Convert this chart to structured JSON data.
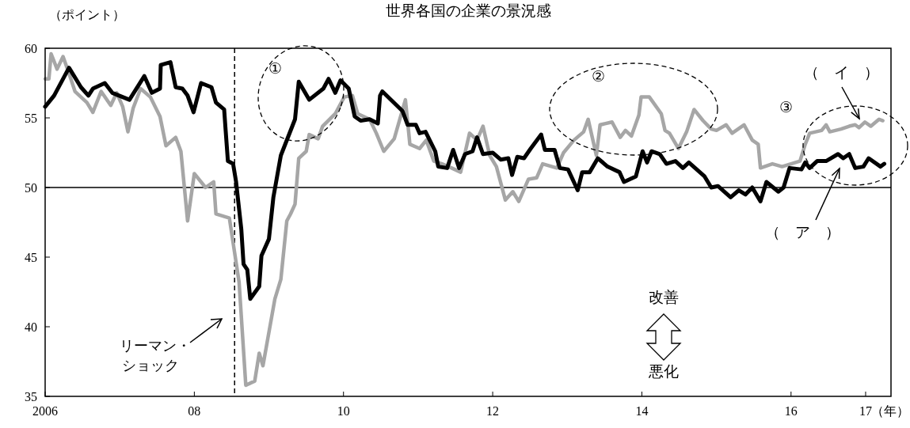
{
  "chart_data": {
    "type": "line",
    "title": "世界各国の企業の景況感",
    "ylabel": "（ポイント）",
    "xlabel": "（年）",
    "xlim": [
      2006,
      2017.34
    ],
    "xticks": [
      {
        "value": 2006,
        "label": "2006"
      },
      {
        "value": 2008,
        "label": "08"
      },
      {
        "value": 2010,
        "label": "10"
      },
      {
        "value": 2012,
        "label": "12"
      },
      {
        "value": 2014,
        "label": "14"
      },
      {
        "value": 2016,
        "label": "16"
      },
      {
        "value": 2017,
        "label": "17"
      }
    ],
    "ylim": [
      35,
      60
    ],
    "yticks": [
      35,
      40,
      45,
      50,
      55,
      60
    ],
    "grid": false,
    "line_style": "solid",
    "marker": "none",
    "annotations": [
      "①",
      "②",
      "③",
      "改善",
      "悪化",
      "リーマン・ショック"
    ],
    "ref_lines": [
      {
        "axis": "y",
        "value": 50,
        "color": "#000000",
        "line_style": "solid"
      },
      {
        "axis": "x",
        "value": 2008.54,
        "color": "#000000",
        "line_style": "dashed"
      }
    ],
    "series": [
      {
        "name": "（　ア　）",
        "color": "#000000",
        "x": [
          2006.0,
          2006.12,
          2006.32,
          2006.48,
          2006.58,
          2006.64,
          2006.8,
          2006.9,
          2007.13,
          2007.33,
          2007.43,
          2007.54,
          2007.55,
          2007.68,
          2007.75,
          2007.84,
          2007.91,
          2007.99,
          2008.09,
          2008.23,
          2008.29,
          2008.4,
          2008.42,
          2008.45,
          2008.52,
          2008.56,
          2008.63,
          2008.66,
          2008.71,
          2008.75,
          2008.87,
          2008.9,
          2009.0,
          2009.06,
          2009.11,
          2009.16,
          2009.35,
          2009.4,
          2009.54,
          2009.73,
          2009.8,
          2009.89,
          2009.96,
          2010.07,
          2010.15,
          2010.23,
          2010.35,
          2010.46,
          2010.49,
          2010.52,
          2010.79,
          2010.86,
          2010.97,
          2011.02,
          2011.1,
          2011.23,
          2011.27,
          2011.39,
          2011.47,
          2011.55,
          2011.63,
          2011.73,
          2011.79,
          2011.87,
          2012.0,
          2012.11,
          2012.21,
          2012.26,
          2012.33,
          2012.42,
          2012.51,
          2012.65,
          2012.7,
          2012.83,
          2012.9,
          2013.01,
          2013.14,
          2013.2,
          2013.3,
          2013.41,
          2013.54,
          2013.7,
          2013.76,
          2013.92,
          2014.01,
          2014.07,
          2014.13,
          2014.24,
          2014.33,
          2014.45,
          2014.55,
          2014.63,
          2014.84,
          2014.93,
          2015.02,
          2015.19,
          2015.3,
          2015.39,
          2015.48,
          2015.59,
          2015.67,
          2015.83,
          2015.9,
          2015.98,
          2016.14,
          2016.19,
          2016.25,
          2016.35,
          2016.47,
          2016.63,
          2016.7,
          2016.78,
          2016.86,
          2016.97,
          2017.04,
          2017.2,
          2017.25
        ],
        "values": [
          55.8,
          56.6,
          58.6,
          57.2,
          56.6,
          57.1,
          57.5,
          56.8,
          56.3,
          58.0,
          56.8,
          57.1,
          58.8,
          59.0,
          57.2,
          57.1,
          56.6,
          55.4,
          57.5,
          57.2,
          56.1,
          55.6,
          54.1,
          51.9,
          51.7,
          50.4,
          47.0,
          44.5,
          44.1,
          42.0,
          42.9,
          45.1,
          46.3,
          49.3,
          50.8,
          52.3,
          54.9,
          57.6,
          56.3,
          57.1,
          57.8,
          56.8,
          57.7,
          57.1,
          55.1,
          54.8,
          54.9,
          54.6,
          56.6,
          56.9,
          55.5,
          54.5,
          54.5,
          53.9,
          54.0,
          52.6,
          51.5,
          51.4,
          52.7,
          51.4,
          52.4,
          52.6,
          53.6,
          52.4,
          52.5,
          52.0,
          52.1,
          50.9,
          52.2,
          52.1,
          52.8,
          53.8,
          52.7,
          52.7,
          51.4,
          51.3,
          49.8,
          51.1,
          51.1,
          52.1,
          51.5,
          51.1,
          50.4,
          50.8,
          52.6,
          51.8,
          52.6,
          52.4,
          51.7,
          51.9,
          51.4,
          51.8,
          50.8,
          50.0,
          50.1,
          49.3,
          49.8,
          49.5,
          50.0,
          49.0,
          50.4,
          49.7,
          50.0,
          51.4,
          51.3,
          51.8,
          51.4,
          51.9,
          51.9,
          52.4,
          52.1,
          52.4,
          51.4,
          51.5,
          52.1,
          51.5,
          51.7
        ]
      },
      {
        "name": "（　イ　）",
        "color": "#a6a6a6",
        "x": [
          2006.0,
          2006.05,
          2006.08,
          2006.16,
          2006.24,
          2006.32,
          2006.4,
          2006.56,
          2006.64,
          2006.75,
          2006.88,
          2006.96,
          2007.04,
          2007.11,
          2007.18,
          2007.28,
          2007.41,
          2007.54,
          2007.62,
          2007.75,
          2007.82,
          2007.91,
          2008.0,
          2008.15,
          2008.26,
          2008.29,
          2008.47,
          2008.6,
          2008.69,
          2008.81,
          2008.87,
          2008.92,
          2009.08,
          2009.16,
          2009.24,
          2009.29,
          2009.35,
          2009.4,
          2009.5,
          2009.54,
          2009.66,
          2009.72,
          2009.89,
          2010.01,
          2010.12,
          2010.19,
          2010.35,
          2010.44,
          2010.54,
          2010.68,
          2010.83,
          2010.89,
          2011.02,
          2011.11,
          2011.21,
          2011.32,
          2011.45,
          2011.57,
          2011.69,
          2011.79,
          2011.87,
          2011.96,
          2012.05,
          2012.17,
          2012.27,
          2012.35,
          2012.48,
          2012.59,
          2012.67,
          2012.86,
          2012.95,
          2013.09,
          2013.22,
          2013.28,
          2013.39,
          2013.44,
          2013.6,
          2013.71,
          2013.78,
          2013.86,
          2013.96,
          2013.99,
          2014.1,
          2014.26,
          2014.31,
          2014.37,
          2014.49,
          2014.6,
          2014.7,
          2014.82,
          2014.93,
          2015.0,
          2015.13,
          2015.21,
          2015.37,
          2015.48,
          2015.56,
          2015.59,
          2015.75,
          2015.88,
          2016.12,
          2016.19,
          2016.25,
          2016.41,
          2016.47,
          2016.52,
          2016.67,
          2016.78,
          2016.86,
          2016.91,
          2016.99,
          2017.07,
          2017.18,
          2017.23
        ],
        "values": [
          57.8,
          57.8,
          59.6,
          58.5,
          59.4,
          58.2,
          56.9,
          56.1,
          55.4,
          56.9,
          55.9,
          56.8,
          55.8,
          54.0,
          55.7,
          57.1,
          56.5,
          55.1,
          53.0,
          53.6,
          52.6,
          47.6,
          51.0,
          50.0,
          50.4,
          48.1,
          47.8,
          43.2,
          35.8,
          36.1,
          38.1,
          37.2,
          42.0,
          43.4,
          47.6,
          48.1,
          48.8,
          52.1,
          52.6,
          53.8,
          53.5,
          54.4,
          55.3,
          56.5,
          56.6,
          55.3,
          54.9,
          53.9,
          52.6,
          53.5,
          56.3,
          53.1,
          52.8,
          53.4,
          51.9,
          51.7,
          51.4,
          51.1,
          53.9,
          53.4,
          54.4,
          52.3,
          51.5,
          49.1,
          49.7,
          49.0,
          50.6,
          50.7,
          51.7,
          51.4,
          52.5,
          53.4,
          54.0,
          54.9,
          52.3,
          54.5,
          54.7,
          53.6,
          54.1,
          53.7,
          55.2,
          56.5,
          56.5,
          55.3,
          54.1,
          53.9,
          52.8,
          54.0,
          55.6,
          54.8,
          54.2,
          54.1,
          54.5,
          53.9,
          54.5,
          53.4,
          53.1,
          51.4,
          51.7,
          51.5,
          51.9,
          53.1,
          53.9,
          54.1,
          54.5,
          54.0,
          54.2,
          54.4,
          54.5,
          54.3,
          54.7,
          54.4,
          54.9,
          54.8
        ]
      }
    ]
  }
}
